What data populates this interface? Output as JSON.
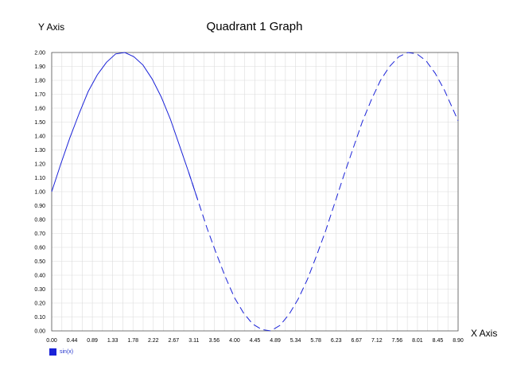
{
  "chart_data": {
    "type": "line",
    "title": "Quadrant 1 Graph",
    "xlabel": "X Axis",
    "ylabel": "Y Axis",
    "xlim": [
      0,
      8.9
    ],
    "ylim": [
      0,
      2
    ],
    "grid": true,
    "x_ticks": [
      "0.00",
      "0.44",
      "0.89",
      "1.33",
      "1.78",
      "2.22",
      "2.67",
      "3.11",
      "3.56",
      "4.00",
      "4.45",
      "4.89",
      "5.34",
      "5.78",
      "6.23",
      "6.67",
      "7.12",
      "7.56",
      "8.01",
      "8.45",
      "8.90"
    ],
    "y_ticks": [
      "0.00",
      "0.10",
      "0.20",
      "0.30",
      "0.40",
      "0.50",
      "0.60",
      "0.70",
      "0.80",
      "0.90",
      "1.00",
      "1.10",
      "1.20",
      "1.30",
      "1.40",
      "1.50",
      "1.60",
      "1.70",
      "1.80",
      "1.90",
      "2.00"
    ],
    "series": [
      {
        "name": "sin(x)",
        "color": "#1a22d8",
        "x": [
          0,
          0.2,
          0.4,
          0.6,
          0.8,
          1.0,
          1.2,
          1.4,
          1.6,
          1.8,
          2.0,
          2.2,
          2.4,
          2.6,
          2.8,
          3.0,
          3.2,
          3.4,
          3.6,
          3.8,
          4.0,
          4.2,
          4.4,
          4.6,
          4.8,
          5.0,
          5.2,
          5.4,
          5.6,
          5.8,
          6.0,
          6.2,
          6.4,
          6.6,
          6.8,
          7.0,
          7.2,
          7.4,
          7.6,
          7.8,
          8.0,
          8.2,
          8.4,
          8.6,
          8.9
        ],
        "y": [
          1.0,
          1.2,
          1.39,
          1.56,
          1.72,
          1.84,
          1.93,
          1.99,
          2.0,
          1.97,
          1.91,
          1.81,
          1.68,
          1.52,
          1.33,
          1.14,
          0.94,
          0.74,
          0.56,
          0.39,
          0.24,
          0.13,
          0.05,
          0.01,
          0.0,
          0.04,
          0.12,
          0.23,
          0.37,
          0.54,
          0.72,
          0.92,
          1.12,
          1.31,
          1.5,
          1.66,
          1.8,
          1.9,
          1.97,
          2.0,
          1.99,
          1.94,
          1.85,
          1.73,
          1.51
        ],
        "solid_until_x": 3.11
      }
    ],
    "legend": "bottom-left"
  }
}
